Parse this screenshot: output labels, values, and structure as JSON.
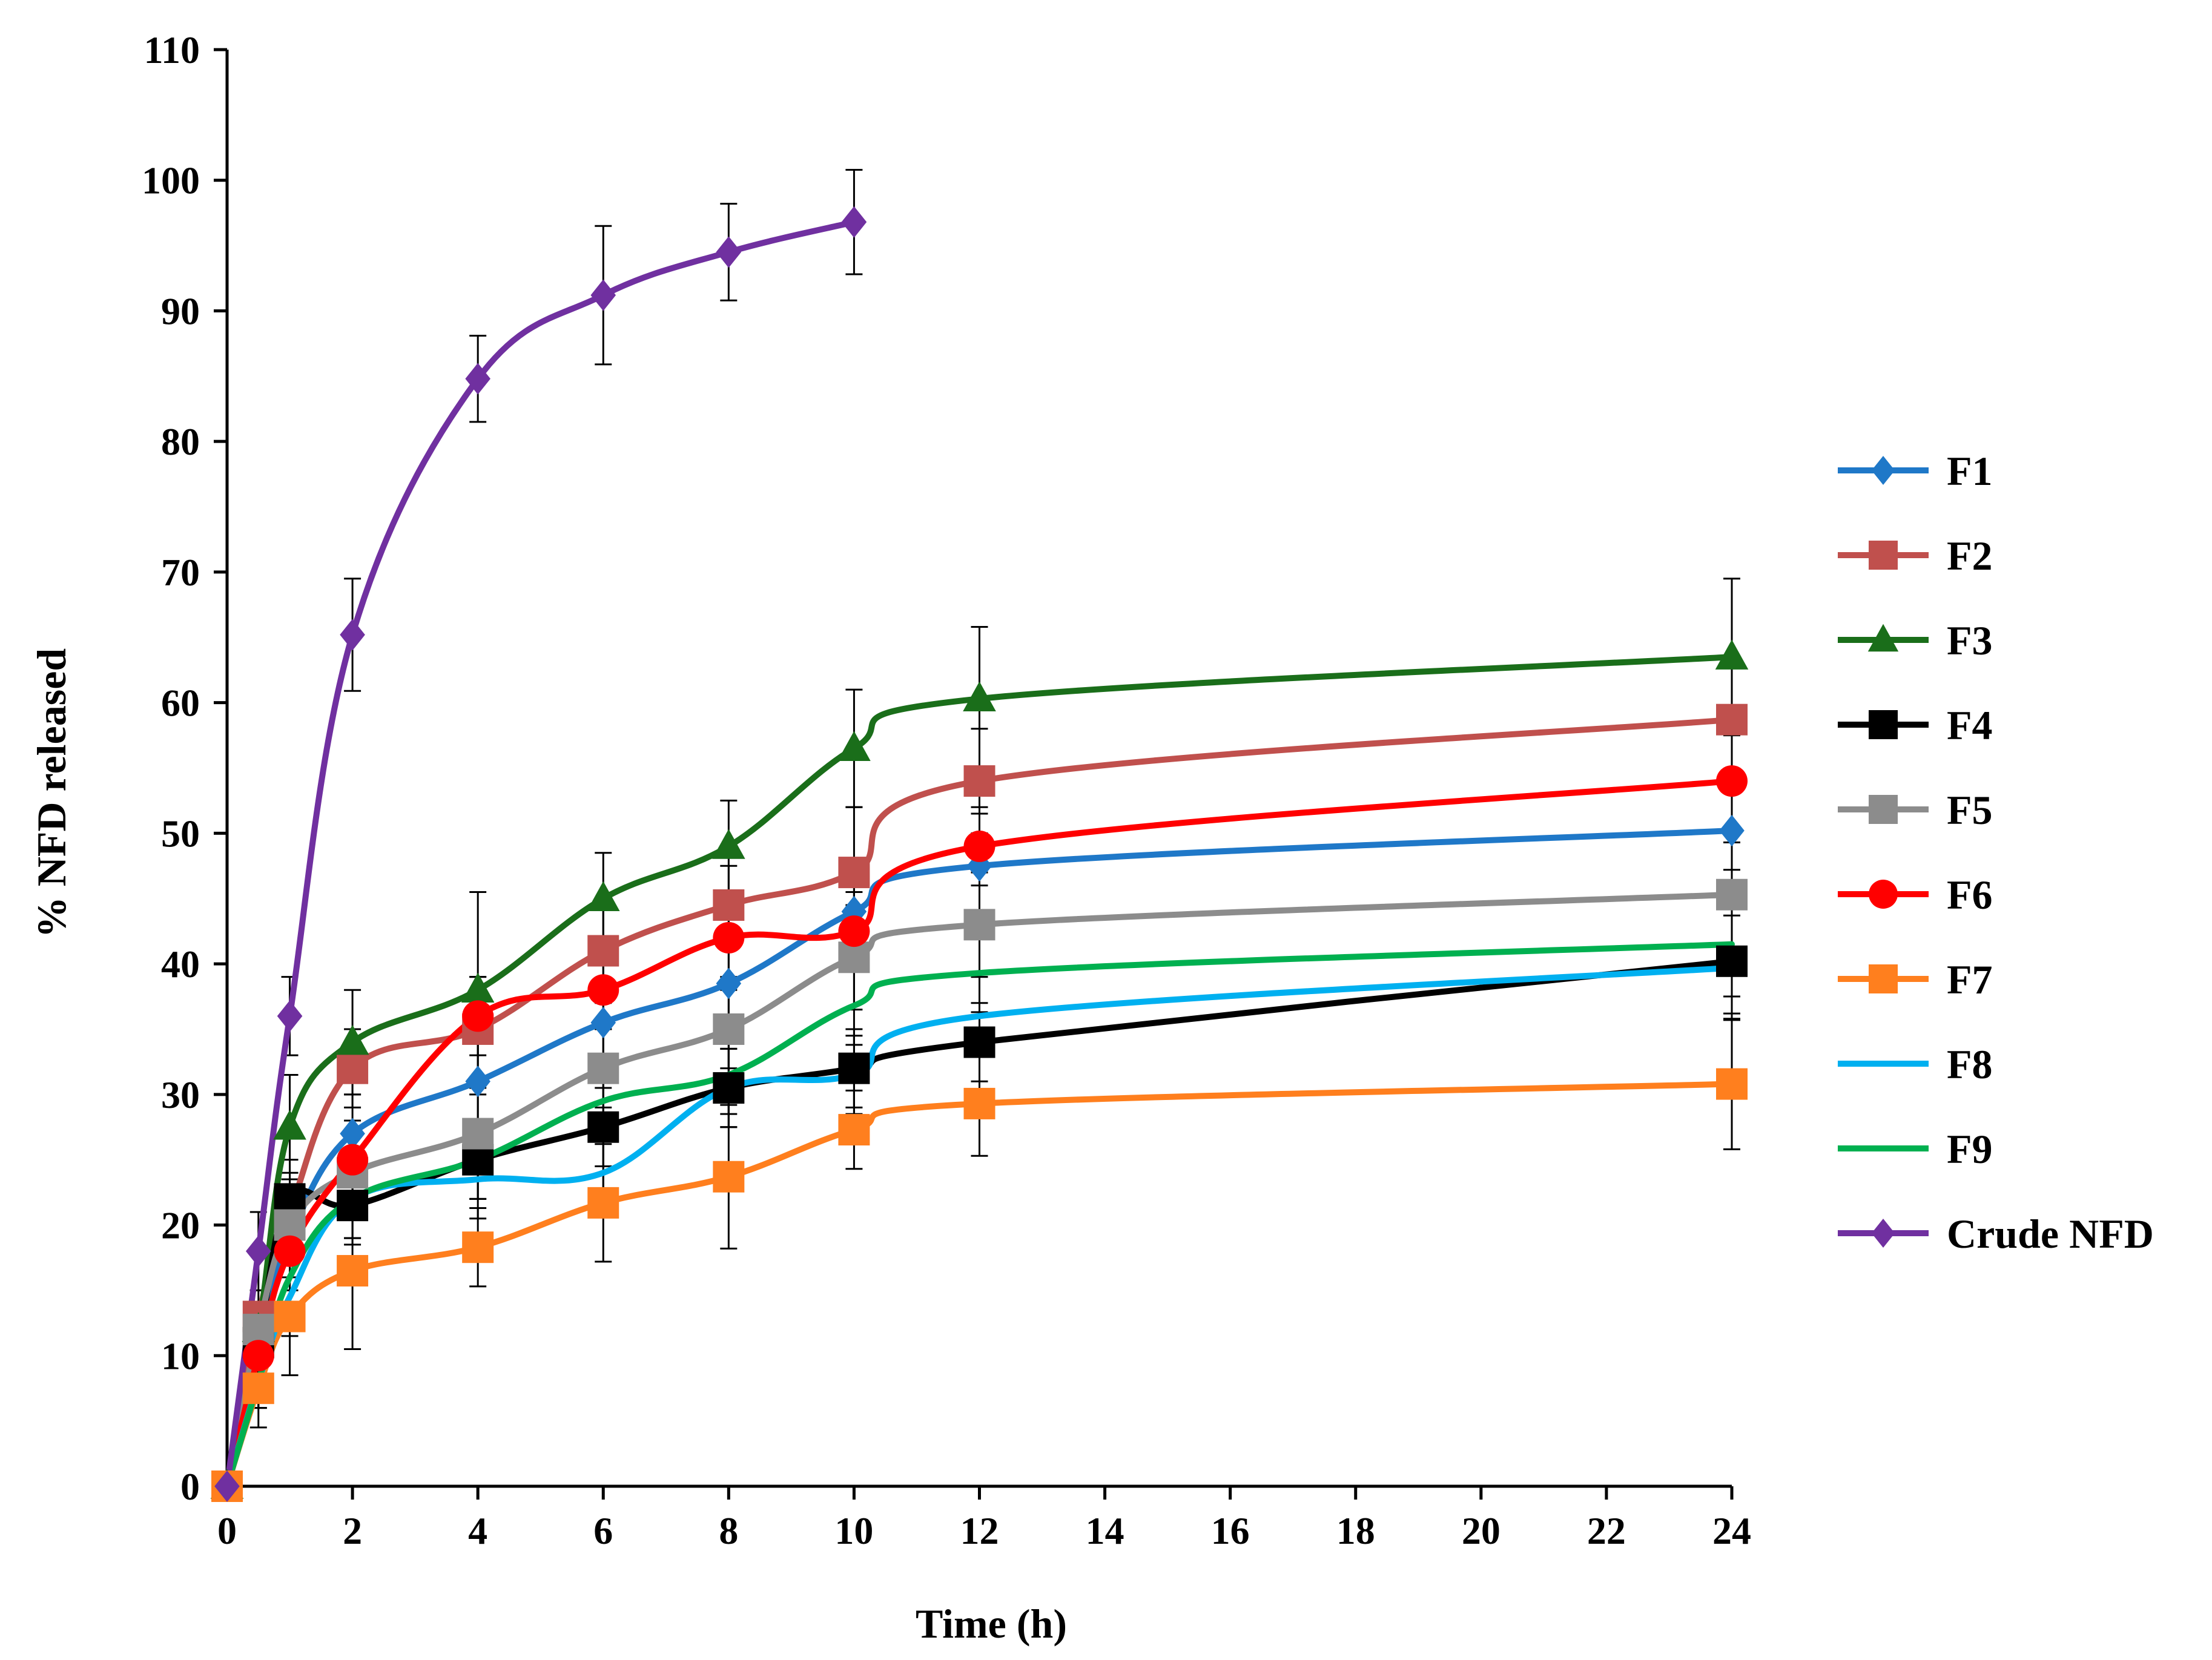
{
  "chart_data": {
    "type": "line",
    "title": "",
    "xlabel": "Time (h)",
    "ylabel": "% NFD released",
    "xlim": [
      0,
      24
    ],
    "ylim": [
      0,
      110
    ],
    "x_ticks": [
      "0",
      "2",
      "4",
      "6",
      "8",
      "10",
      "12",
      "14",
      "16",
      "18",
      "20",
      "22",
      "24"
    ],
    "y_ticks": [
      "0",
      "10",
      "20",
      "30",
      "40",
      "50",
      "60",
      "70",
      "80",
      "90",
      "100",
      "110"
    ],
    "legend_position": "right",
    "series": [
      {
        "name": "F1",
        "color": "#1f78c8",
        "marker": "diamond",
        "x": [
          0,
          0.5,
          1,
          2,
          4,
          6,
          8,
          10,
          12,
          24
        ],
        "y": [
          0,
          11,
          19,
          27,
          31,
          35.5,
          38.5,
          44,
          47.5,
          50.2
        ],
        "err": [
          0,
          2,
          3,
          3,
          4,
          3,
          3,
          4,
          4,
          3
        ]
      },
      {
        "name": "F2",
        "color": "#c0504d",
        "marker": "square",
        "x": [
          0,
          0.5,
          1,
          2,
          4,
          6,
          8,
          10,
          12,
          24
        ],
        "y": [
          0,
          13,
          21,
          32,
          35,
          41,
          44.5,
          47,
          54,
          58.7
        ],
        "err": [
          0,
          2,
          3,
          3,
          4,
          4,
          3,
          5,
          4,
          4
        ]
      },
      {
        "name": "F3",
        "color": "#1a6e1a",
        "marker": "triangle",
        "x": [
          0,
          0.5,
          1,
          2,
          4,
          6,
          8,
          10,
          12,
          24
        ],
        "y": [
          0,
          12,
          27.5,
          34,
          38,
          45,
          49,
          56.5,
          60.3,
          63.5
        ],
        "err": [
          0,
          2,
          4,
          4,
          7.5,
          3.5,
          3.5,
          4.5,
          5.5,
          6
        ]
      },
      {
        "name": "F4",
        "color": "#000000",
        "marker": "square",
        "x": [
          0,
          0.5,
          1,
          2,
          4,
          6,
          8,
          10,
          12,
          24
        ],
        "y": [
          0,
          11,
          22,
          21.5,
          25,
          27.5,
          30.5,
          32,
          34,
          40.2
        ],
        "err": [
          0,
          2,
          3,
          3,
          3,
          3,
          3,
          3,
          3,
          4
        ]
      },
      {
        "name": "F5",
        "color": "#8c8c8c",
        "marker": "square",
        "x": [
          0,
          0.5,
          1,
          2,
          4,
          6,
          8,
          10,
          12,
          24
        ],
        "y": [
          0,
          12,
          20,
          24,
          27,
          32,
          35,
          40.5,
          43,
          45.3
        ],
        "err": [
          0,
          2,
          3,
          3,
          3,
          3,
          3,
          4,
          4,
          4
        ]
      },
      {
        "name": "F6",
        "color": "#ff0000",
        "marker": "circle",
        "x": [
          0,
          0.5,
          1,
          2,
          4,
          6,
          8,
          10,
          12,
          24
        ],
        "y": [
          0,
          10,
          18,
          25,
          36,
          38,
          42,
          42.5,
          49,
          54
        ],
        "err": [
          0,
          2,
          3,
          3,
          3,
          3,
          3,
          3,
          3,
          4
        ]
      },
      {
        "name": "F7",
        "color": "#ff7f1e",
        "marker": "square",
        "x": [
          0,
          0.5,
          1,
          2,
          4,
          6,
          8,
          10,
          12,
          24
        ],
        "y": [
          0,
          7.5,
          13,
          16.5,
          18.3,
          21.7,
          23.7,
          27.3,
          29.3,
          30.8
        ],
        "err": [
          0,
          3,
          4.5,
          6,
          3,
          4.5,
          5.5,
          3,
          4,
          5
        ]
      },
      {
        "name": "F8",
        "color": "#00b0f0",
        "marker": "none",
        "x": [
          0,
          0.5,
          1,
          2,
          4,
          6,
          8,
          10,
          12,
          24
        ],
        "y": [
          0,
          8,
          14.5,
          22,
          23.5,
          24,
          30.5,
          31.5,
          36,
          39.7
        ],
        "err": [
          0,
          2,
          3,
          3,
          3,
          3,
          3,
          3,
          3,
          4
        ]
      },
      {
        "name": "F9",
        "color": "#00b050",
        "marker": "none",
        "x": [
          0,
          0.5,
          1,
          2,
          4,
          6,
          8,
          10,
          12,
          24
        ],
        "y": [
          0,
          8,
          16,
          22,
          25,
          29.5,
          31.5,
          36.8,
          39.3,
          41.5
        ],
        "err": [
          0,
          2,
          3,
          3,
          3,
          3,
          3,
          3,
          3,
          4
        ]
      },
      {
        "name": "Crude NFD",
        "color": "#7030a0",
        "marker": "diamond",
        "x": [
          0,
          0.5,
          1,
          2,
          4,
          6,
          8,
          10
        ],
        "y": [
          0,
          18,
          36,
          65.2,
          84.8,
          91.2,
          94.5,
          96.8
        ],
        "err": [
          0,
          3,
          3,
          4.3,
          3.3,
          5.3,
          3.7,
          4
        ]
      }
    ]
  }
}
